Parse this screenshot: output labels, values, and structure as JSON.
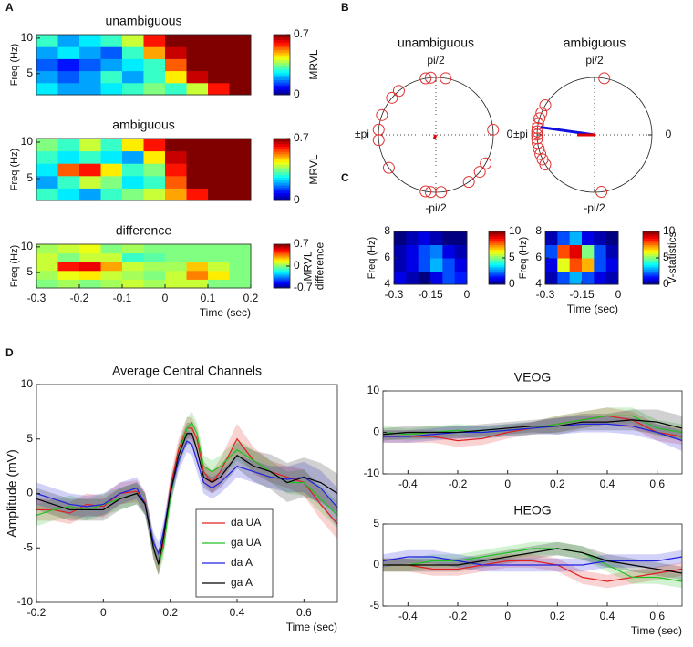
{
  "panel_labels": [
    "A",
    "B",
    "C",
    "D"
  ],
  "chart_data": [
    {
      "type": "heatmap",
      "title": "unambiguous",
      "ylabel": "Freq (Hz)",
      "xlim": [
        -0.3,
        0.2
      ],
      "ylim": [
        2,
        10.5
      ],
      "yticks": [
        5,
        10
      ],
      "clim": [
        0,
        0.7
      ],
      "cticks": [
        0,
        0.7
      ],
      "colorbar_label": [
        "MRVL"
      ],
      "colormap": "jet",
      "z": [
        [
          0.25,
          0.2,
          0.2,
          0.25,
          0.3,
          0.35,
          0.3,
          0.4,
          0.6,
          0.7
        ],
        [
          0.2,
          0.15,
          0.2,
          0.3,
          0.2,
          0.3,
          0.45,
          0.65,
          0.7,
          0.7
        ],
        [
          0.15,
          0.1,
          0.15,
          0.2,
          0.25,
          0.3,
          0.55,
          0.7,
          0.7,
          0.7
        ],
        [
          0.2,
          0.25,
          0.2,
          0.15,
          0.3,
          0.5,
          0.65,
          0.7,
          0.7,
          0.7
        ],
        [
          0.3,
          0.2,
          0.25,
          0.3,
          0.4,
          0.6,
          0.7,
          0.7,
          0.7,
          0.7
        ]
      ]
    },
    {
      "type": "heatmap",
      "title": "ambiguous",
      "ylabel": "Freq (Hz)",
      "xlim": [
        -0.3,
        0.2
      ],
      "ylim": [
        2,
        10.5
      ],
      "yticks": [
        5,
        10
      ],
      "clim": [
        0,
        0.7
      ],
      "cticks": [
        0,
        0.7
      ],
      "colorbar_label": [
        "MRVL"
      ],
      "colormap": "jet",
      "z": [
        [
          0.3,
          0.25,
          0.2,
          0.3,
          0.35,
          0.4,
          0.5,
          0.6,
          0.7,
          0.7
        ],
        [
          0.2,
          0.3,
          0.4,
          0.35,
          0.25,
          0.3,
          0.55,
          0.7,
          0.7,
          0.7
        ],
        [
          0.25,
          0.55,
          0.6,
          0.45,
          0.3,
          0.35,
          0.6,
          0.7,
          0.7,
          0.7
        ],
        [
          0.3,
          0.25,
          0.3,
          0.25,
          0.2,
          0.45,
          0.65,
          0.7,
          0.7,
          0.7
        ],
        [
          0.35,
          0.3,
          0.4,
          0.3,
          0.45,
          0.6,
          0.7,
          0.7,
          0.7,
          0.7
        ]
      ]
    },
    {
      "type": "heatmap",
      "title": "difference",
      "ylabel": "Freq (Hz)",
      "xlabel": "Time (sec)",
      "xlim": [
        -0.3,
        0.2
      ],
      "ylim": [
        2,
        10.5
      ],
      "yticks": [
        5,
        10
      ],
      "xticks": [
        -0.3,
        -0.2,
        -0.1,
        0,
        0.1,
        0.2
      ],
      "clim": [
        -0.7,
        0.7
      ],
      "cticks": [
        -0.7,
        0,
        0.7
      ],
      "colorbar_label": [
        "MRVL",
        "difference"
      ],
      "colormap": "jet",
      "z": [
        [
          0.0,
          0.05,
          0.0,
          0.05,
          0.1,
          0.05,
          0.1,
          0.1,
          0.0,
          0.0
        ],
        [
          0.05,
          0.15,
          0.2,
          0.1,
          0.05,
          0.0,
          0.1,
          0.35,
          0.2,
          0.0
        ],
        [
          0.1,
          0.5,
          0.55,
          0.3,
          0.1,
          0.05,
          0.05,
          0.25,
          0.1,
          0.0
        ],
        [
          0.1,
          0.0,
          0.1,
          0.1,
          -0.1,
          -0.05,
          0.0,
          0.0,
          0.0,
          0.0
        ],
        [
          0.05,
          0.1,
          0.15,
          0.0,
          0.05,
          0.0,
          0.0,
          0.0,
          0.0,
          0.0
        ]
      ]
    },
    {
      "type": "polar",
      "title": "unambiguous",
      "point_color": "#e03030",
      "angle_ticks": [
        {
          "value": 1.5708,
          "label": "pi/2"
        },
        0,
        {
          "value": -1.5708,
          "label": "-pi/2"
        },
        {
          "value": 3.1416,
          "label": "±pi"
        }
      ],
      "angles": [
        1.4,
        1.66,
        1.75,
        2.27,
        2.44,
        2.79,
        3.05,
        -3.05,
        -2.53,
        -1.75,
        -1.66,
        -1.48,
        -0.96,
        -0.7,
        -0.52,
        0.09
      ],
      "vectors": [
        {
          "color": "#e00000",
          "angle": -2.0,
          "length": 0.07
        }
      ]
    },
    {
      "type": "polar",
      "title": "ambiguous",
      "point_color": "#e03030",
      "angle_ticks": [
        {
          "value": 1.5708,
          "label": "pi/2"
        },
        0,
        {
          "value": -1.5708,
          "label": "-pi/2"
        },
        {
          "value": 3.1416,
          "label": "±pi"
        }
      ],
      "angles": [
        1.4,
        2.6,
        2.75,
        2.85,
        2.95,
        3.02,
        3.08,
        3.14,
        -3.08,
        -3.0,
        -2.9,
        -2.8,
        -2.7,
        -2.6,
        -1.45
      ],
      "vectors": [
        {
          "color": "#1010e0",
          "angle": 3.0,
          "length": 0.95
        },
        {
          "color": "#e00000",
          "angle": 3.14,
          "length": 0.3
        }
      ]
    },
    {
      "type": "heatmap",
      "ylabel": "Freq (Hz)",
      "xlim": [
        -0.3,
        0
      ],
      "ylim": [
        4,
        8
      ],
      "xticks": [
        -0.3,
        -0.15,
        0
      ],
      "yticks": [
        4,
        6,
        8
      ],
      "clim": [
        0,
        10
      ],
      "cticks": [
        0,
        5,
        10
      ],
      "colormap": "jet",
      "z": [
        [
          1,
          0.5,
          0,
          1,
          2,
          1.5
        ],
        [
          0.5,
          1,
          2,
          3,
          2,
          1
        ],
        [
          0.5,
          1,
          2,
          2.5,
          1,
          0.5
        ],
        [
          0,
          0.5,
          1,
          0.5,
          0,
          0
        ]
      ]
    },
    {
      "type": "heatmap",
      "ylabel": "Freq (Hz)",
      "xlabel": "Time (sec)",
      "xlim": [
        -0.3,
        0
      ],
      "ylim": [
        4,
        8
      ],
      "xticks": [
        -0.3,
        -0.15,
        0
      ],
      "yticks": [
        4,
        6,
        8
      ],
      "clim": [
        0,
        10
      ],
      "cticks": [
        0,
        5,
        10
      ],
      "colorbar_label": [
        "V-statistics"
      ],
      "colormap": "jet",
      "z": [
        [
          0.5,
          2,
          3,
          2,
          1,
          0.5
        ],
        [
          1,
          6,
          8,
          7,
          2,
          1
        ],
        [
          2,
          8,
          9,
          5,
          2,
          0.5
        ],
        [
          0.5,
          2,
          3,
          1,
          0.5,
          0
        ]
      ]
    },
    {
      "type": "line",
      "title": "Average Central Channels",
      "ylabel": "Amplitude (mV)",
      "xlabel": "Time (sec)",
      "xlim": [
        -0.2,
        0.7
      ],
      "ylim": [
        -10,
        10
      ],
      "xticks": [
        -0.2,
        0,
        0.2,
        0.4,
        0.6
      ],
      "yticks": [
        -10,
        -5,
        0,
        5,
        10
      ],
      "legend": "lower center",
      "x": [
        -0.2,
        -0.15,
        -0.1,
        -0.05,
        0,
        0.05,
        0.1,
        0.125,
        0.15,
        0.165,
        0.18,
        0.2,
        0.225,
        0.25,
        0.265,
        0.28,
        0.3,
        0.325,
        0.35,
        0.4,
        0.45,
        0.5,
        0.55,
        0.6,
        0.65,
        0.7
      ],
      "series": [
        {
          "name": "da UA",
          "color": "#e02020",
          "values": [
            -1.5,
            -1.5,
            -1.8,
            -1,
            -1.2,
            0,
            0.2,
            -0.8,
            -5,
            -6.5,
            -4.5,
            0.5,
            4,
            6,
            6,
            5,
            2,
            1,
            2,
            5,
            3,
            2,
            1.5,
            1,
            -1,
            -2.8
          ],
          "errors": [
            1,
            1,
            1,
            1,
            1,
            1,
            1,
            1,
            1,
            1,
            1,
            1,
            1,
            1,
            1,
            1,
            1,
            1,
            1.2,
            1.4,
            1.2,
            1,
            1,
            1.2,
            1.4,
            1.4
          ]
        },
        {
          "name": "ga UA",
          "color": "#20c020",
          "values": [
            -2,
            -1.5,
            -1.2,
            -1.5,
            -1,
            -0.5,
            0,
            -1,
            -5,
            -6.5,
            -5,
            -0.5,
            3.5,
            6,
            6.5,
            5.5,
            2.5,
            2,
            2.5,
            4,
            3,
            2,
            1,
            1,
            -0.5,
            -2
          ],
          "errors": [
            1,
            1,
            1,
            1,
            1,
            1,
            1,
            1,
            1,
            1,
            1,
            1,
            1,
            1,
            1,
            1,
            1,
            1,
            1,
            1,
            1,
            1,
            1,
            1.2,
            1.2,
            1.2
          ]
        },
        {
          "name": "da A",
          "color": "#2020e0",
          "values": [
            0,
            -0.5,
            -1,
            -1.2,
            -1,
            0,
            0.5,
            -1,
            -4.5,
            -5.5,
            -3.5,
            0,
            3,
            4.8,
            4.5,
            3,
            1,
            0.5,
            1,
            2.5,
            2,
            1.5,
            1.3,
            1.5,
            0.5,
            -1.3
          ],
          "errors": [
            1,
            1,
            1,
            1,
            1,
            1,
            1,
            1,
            1,
            1,
            1,
            1,
            1,
            1,
            1,
            1,
            1,
            1,
            1,
            1,
            1,
            1,
            1.2,
            1.4,
            1.6,
            1.8
          ]
        },
        {
          "name": "ga A",
          "color": "#000000",
          "values": [
            -0.5,
            -1,
            -1.5,
            -1.5,
            -1.5,
            -0.5,
            0,
            -1,
            -5,
            -6.5,
            -4,
            0,
            3.5,
            5.5,
            5.5,
            4,
            1.5,
            1,
            1.5,
            3.5,
            2.5,
            2,
            1,
            1.5,
            1,
            0
          ],
          "errors": [
            1,
            1,
            1,
            1,
            1,
            1,
            1,
            1,
            1,
            1,
            1,
            1,
            1,
            1,
            1,
            1,
            1,
            1,
            1,
            1.2,
            1.4,
            1.6,
            1.8,
            1.8,
            1.8,
            1.8
          ]
        }
      ]
    },
    {
      "type": "line",
      "title": "VEOG",
      "xlim": [
        -0.5,
        0.7
      ],
      "ylim": [
        -10,
        10
      ],
      "xticks": [
        -0.4,
        -0.2,
        0,
        0.2,
        0.4,
        0.6
      ],
      "yticks": [
        -10,
        0,
        10
      ],
      "x": [
        -0.5,
        -0.4,
        -0.3,
        -0.2,
        -0.1,
        0,
        0.1,
        0.2,
        0.3,
        0.4,
        0.5,
        0.6,
        0.7
      ],
      "series": [
        {
          "name": "da UA",
          "color": "#e02020",
          "values": [
            -1,
            -1,
            -1,
            -2,
            -1.5,
            0,
            1,
            2,
            3,
            4,
            3,
            0,
            -1
          ],
          "errors": [
            1.5,
            1.5,
            1.5,
            1.5,
            1.5,
            1.5,
            1.5,
            2,
            2,
            2,
            2,
            2,
            2
          ]
        },
        {
          "name": "ga UA",
          "color": "#20c020",
          "values": [
            0,
            -0.5,
            0,
            0.5,
            0,
            0.5,
            1,
            2,
            3,
            4,
            4,
            1,
            0
          ],
          "errors": [
            1.5,
            1.5,
            1.5,
            1.5,
            1.5,
            1.5,
            1.5,
            2,
            2,
            2,
            2,
            2,
            2
          ]
        },
        {
          "name": "da A",
          "color": "#2020e0",
          "values": [
            -1,
            -1,
            -0.5,
            0,
            0,
            0.5,
            1,
            1.5,
            2,
            2,
            1.5,
            0,
            -2
          ],
          "errors": [
            1.5,
            1.5,
            1.5,
            1.5,
            1.5,
            1.5,
            1.5,
            2,
            2,
            2,
            2,
            2,
            2.5
          ]
        },
        {
          "name": "ga A",
          "color": "#000000",
          "values": [
            -0.5,
            0,
            0,
            0,
            0.5,
            1,
            1.5,
            1.5,
            2.5,
            2.5,
            3,
            2.5,
            1
          ],
          "errors": [
            1.5,
            1.5,
            1.5,
            1.5,
            1.5,
            1.5,
            1.5,
            2,
            2,
            2,
            2.5,
            3,
            3
          ]
        }
      ]
    },
    {
      "type": "line",
      "title": "HEOG",
      "xlabel": "Time (sec)",
      "xlim": [
        -0.5,
        0.7
      ],
      "ylim": [
        -5,
        5
      ],
      "xticks": [
        -0.4,
        -0.2,
        0,
        0.2,
        0.4,
        0.6
      ],
      "yticks": [
        -5,
        0,
        5
      ],
      "x": [
        -0.5,
        -0.4,
        -0.3,
        -0.2,
        -0.1,
        0,
        0.1,
        0.2,
        0.3,
        0.4,
        0.5,
        0.6,
        0.7
      ],
      "series": [
        {
          "name": "da UA",
          "color": "#e02020",
          "values": [
            0,
            0,
            -0.5,
            -0.5,
            0,
            0.5,
            0.5,
            0,
            -1.5,
            -2,
            -1.5,
            -1,
            -0.5
          ],
          "errors": [
            0.8,
            0.8,
            0.8,
            0.8,
            0.8,
            0.8,
            0.8,
            0.8,
            0.8,
            0.8,
            0.8,
            0.8,
            0.8
          ]
        },
        {
          "name": "ga UA",
          "color": "#20c020",
          "values": [
            0,
            0,
            0.5,
            0.5,
            1,
            1.5,
            2,
            2,
            1.5,
            0,
            -1.5,
            -1.5,
            -2
          ],
          "errors": [
            0.8,
            0.8,
            0.8,
            0.8,
            0.8,
            0.8,
            0.8,
            0.8,
            0.8,
            0.8,
            0.8,
            0.8,
            0.8
          ]
        },
        {
          "name": "da A",
          "color": "#2020e0",
          "values": [
            0.5,
            1,
            1,
            0.5,
            0,
            0,
            0,
            0,
            0,
            0.5,
            0.5,
            0.5,
            1
          ],
          "errors": [
            0.8,
            0.8,
            0.8,
            0.8,
            0.8,
            0.8,
            0.8,
            0.8,
            0.8,
            0.8,
            0.8,
            0.8,
            0.8
          ]
        },
        {
          "name": "ga A",
          "color": "#000000",
          "values": [
            0,
            0,
            0,
            0,
            0.5,
            1,
            1.5,
            2,
            1.5,
            0.5,
            0,
            -0.5,
            -1
          ],
          "errors": [
            0.8,
            0.8,
            0.8,
            0.8,
            0.8,
            0.8,
            0.8,
            0.8,
            0.8,
            0.8,
            0.8,
            0.8,
            0.8
          ]
        }
      ]
    }
  ]
}
